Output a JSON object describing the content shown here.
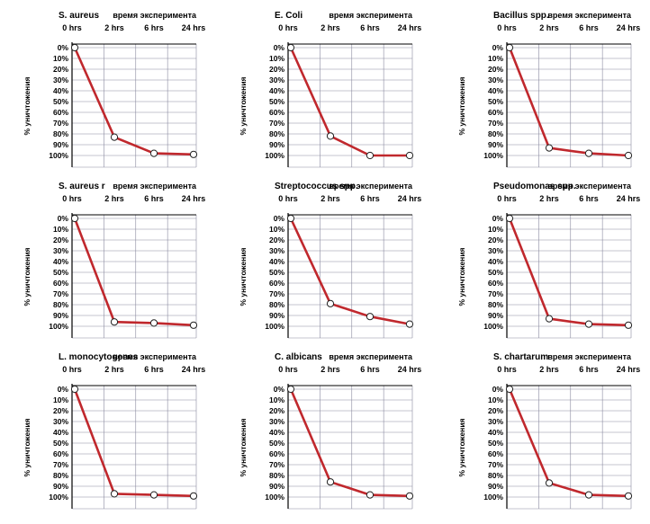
{
  "colors": {
    "line": "#c0282d",
    "grid": "#8a8aa0",
    "axis": "#000000",
    "marker_fill": "#ffffff"
  },
  "chart_data": [
    {
      "type": "line",
      "title": "S. aureus",
      "xlabel": "время эксперимента",
      "ylabel": "% уничтожения",
      "categories": [
        "0 hrs",
        "2 hrs",
        "6 hrs",
        "24 hrs"
      ],
      "yticks": [
        "0%",
        "10%",
        "20%",
        "30%",
        "40%",
        "50%",
        "60%",
        "70%",
        "80%",
        "90%",
        "100%"
      ],
      "ylim": [
        0,
        100
      ],
      "y_inverted": true,
      "grid": true,
      "values": [
        0,
        83,
        98,
        99
      ]
    },
    {
      "type": "line",
      "title": "E. Coli",
      "xlabel": "время эксперимента",
      "ylabel": "% уничтожения",
      "categories": [
        "0 hrs",
        "2 hrs",
        "6 hrs",
        "24 hrs"
      ],
      "yticks": [
        "0%",
        "10%",
        "20%",
        "30%",
        "40%",
        "50%",
        "60%",
        "70%",
        "80%",
        "90%",
        "100%"
      ],
      "ylim": [
        0,
        100
      ],
      "y_inverted": true,
      "grid": true,
      "values": [
        0,
        82,
        100,
        100
      ]
    },
    {
      "type": "line",
      "title": "Bacillus spp.",
      "xlabel": "время эксперимента",
      "ylabel": "% уничтожения",
      "categories": [
        "0 hrs",
        "2 hrs",
        "6 hrs",
        "24 hrs"
      ],
      "yticks": [
        "0%",
        "10%",
        "20%",
        "30%",
        "40%",
        "50%",
        "60%",
        "70%",
        "80%",
        "90%",
        "100%"
      ],
      "ylim": [
        0,
        100
      ],
      "y_inverted": true,
      "grid": true,
      "values": [
        0,
        93,
        98,
        100
      ]
    },
    {
      "type": "line",
      "title": "S. aureus r",
      "xlabel": "время эксперимента",
      "ylabel": "% уничтожения",
      "categories": [
        "0 hrs",
        "2 hrs",
        "6 hrs",
        "24 hrs"
      ],
      "yticks": [
        "0%",
        "10%",
        "20%",
        "30%",
        "40%",
        "50%",
        "60%",
        "70%",
        "80%",
        "90%",
        "100%"
      ],
      "ylim": [
        0,
        100
      ],
      "y_inverted": true,
      "grid": true,
      "values": [
        0,
        96,
        97,
        99
      ]
    },
    {
      "type": "line",
      "title": "Streptococcus spp.",
      "xlabel": "время эксперимента",
      "ylabel": "% уничтожения",
      "categories": [
        "0 hrs",
        "2 hrs",
        "6 hrs",
        "24 hrs"
      ],
      "yticks": [
        "0%",
        "10%",
        "20%",
        "30%",
        "40%",
        "50%",
        "60%",
        "70%",
        "80%",
        "90%",
        "100%"
      ],
      "ylim": [
        0,
        100
      ],
      "y_inverted": true,
      "grid": true,
      "values": [
        0,
        79,
        91,
        98
      ]
    },
    {
      "type": "line",
      "title": "Pseudomonas spp.",
      "xlabel": "время эксперимента",
      "ylabel": "% уничтожения",
      "categories": [
        "0 hrs",
        "2 hrs",
        "6 hrs",
        "24 hrs"
      ],
      "yticks": [
        "0%",
        "10%",
        "20%",
        "30%",
        "40%",
        "50%",
        "60%",
        "70%",
        "80%",
        "90%",
        "100%"
      ],
      "ylim": [
        0,
        100
      ],
      "y_inverted": true,
      "grid": true,
      "values": [
        0,
        93,
        98,
        99
      ]
    },
    {
      "type": "line",
      "title": "L. monocytogenes",
      "xlabel": "время эксперимента",
      "ylabel": "% уничтожения",
      "categories": [
        "0 hrs",
        "2 hrs",
        "6 hrs",
        "24 hrs"
      ],
      "yticks": [
        "0%",
        "10%",
        "20%",
        "30%",
        "40%",
        "50%",
        "60%",
        "70%",
        "80%",
        "90%",
        "100%"
      ],
      "ylim": [
        0,
        100
      ],
      "y_inverted": true,
      "grid": true,
      "values": [
        0,
        97,
        98,
        99
      ]
    },
    {
      "type": "line",
      "title": "C. albicans",
      "xlabel": "время эксперимента",
      "ylabel": "% уничтожения",
      "categories": [
        "0 hrs",
        "2 hrs",
        "6 hrs",
        "24 hrs"
      ],
      "yticks": [
        "0%",
        "10%",
        "20%",
        "30%",
        "40%",
        "50%",
        "60%",
        "70%",
        "80%",
        "90%",
        "100%"
      ],
      "ylim": [
        0,
        100
      ],
      "y_inverted": true,
      "grid": true,
      "values": [
        0,
        86,
        98,
        99
      ]
    },
    {
      "type": "line",
      "title": "S. chartarum",
      "xlabel": "время эксперимента",
      "ylabel": "% уничтожения",
      "categories": [
        "0 hrs",
        "2 hrs",
        "6 hrs",
        "24 hrs"
      ],
      "yticks": [
        "0%",
        "10%",
        "20%",
        "30%",
        "40%",
        "50%",
        "60%",
        "70%",
        "80%",
        "90%",
        "100%"
      ],
      "ylim": [
        0,
        100
      ],
      "y_inverted": true,
      "grid": true,
      "values": [
        0,
        87,
        98,
        99
      ]
    }
  ]
}
